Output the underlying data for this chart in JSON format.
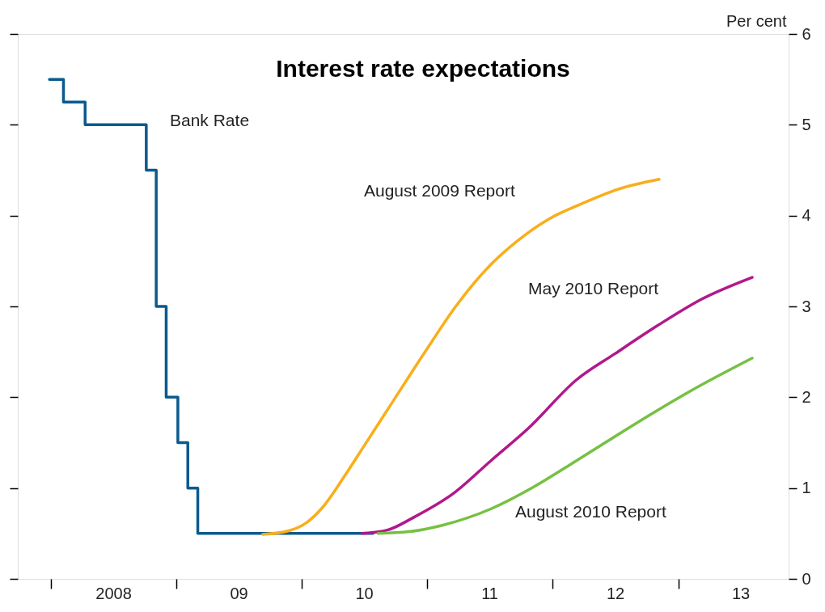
{
  "chart_data": {
    "type": "line",
    "title": "Interest rate expectations",
    "ylabel": "Per cent",
    "xlim": [
      "2007-09-27",
      "2013-11-18"
    ],
    "ylim": [
      0,
      6
    ],
    "xticks": [
      {
        "value": "2008",
        "label": null
      },
      {
        "value": "2008-07",
        "label": "2008"
      },
      {
        "value": "2009",
        "label": null
      },
      {
        "value": "2009-07",
        "label": "09"
      },
      {
        "value": "2010",
        "label": null
      },
      {
        "value": "2010-07",
        "label": "10"
      },
      {
        "value": "2011",
        "label": null
      },
      {
        "value": "2011-07",
        "label": "11"
      },
      {
        "value": "2012",
        "label": null
      },
      {
        "value": "2012-07",
        "label": "12"
      },
      {
        "value": "2013",
        "label": null
      },
      {
        "value": "2013-07",
        "label": "13"
      }
    ],
    "yticks": [
      0,
      1,
      2,
      3,
      4,
      5,
      6
    ],
    "grid": false,
    "line_style": "solid",
    "series": [
      {
        "name": "Bank Rate",
        "type": "step",
        "color": "#0a5a8f",
        "x": [
          "2007-12-28",
          "2008-02-07",
          "2008-04-10",
          "2008-10-05",
          "2008-11-03",
          "2008-12-02",
          "2009-01-05",
          "2009-02-03",
          "2009-03-04",
          "2010-07-27"
        ],
        "values": [
          5.5,
          5.25,
          5.0,
          4.5,
          3.0,
          2.0,
          1.5,
          1.0,
          0.5,
          0.5
        ]
      },
      {
        "name": "August 2009 Report",
        "color": "#f9ae1b",
        "x": [
          "2009-09-09",
          "2009-11-24",
          "2010-01-15",
          "2010-03-03",
          "2010-05-05",
          "2010-07-09",
          "2010-09-24",
          "2010-12-24",
          "2011-03-25",
          "2011-07-05",
          "2011-09-20",
          "2011-12-20",
          "2012-03-25",
          "2012-07-09",
          "2012-11-06"
        ],
        "values": [
          0.49,
          0.53,
          0.62,
          0.79,
          1.13,
          1.51,
          1.96,
          2.49,
          3.0,
          3.46,
          3.72,
          3.96,
          4.13,
          4.29,
          4.4
        ]
      },
      {
        "name": "May 2010 Report",
        "color": "#b0198c",
        "x": [
          "2010-06-25",
          "2010-09-09",
          "2010-11-24",
          "2011-03-18",
          "2011-07-05",
          "2011-10-23",
          "2012-03-10",
          "2012-07-01",
          "2012-11-02",
          "2013-03-10",
          "2013-08-04"
        ],
        "values": [
          0.5,
          0.54,
          0.68,
          0.94,
          1.3,
          1.66,
          2.19,
          2.48,
          2.79,
          3.08,
          3.32
        ]
      },
      {
        "name": "August 2010 Report",
        "color": "#76c043",
        "x": [
          "2010-08-11",
          "2010-11-10",
          "2011-02-14",
          "2011-07-05",
          "2011-11-06",
          "2012-03-10",
          "2012-09-16",
          "2013-02-06",
          "2013-08-04"
        ],
        "values": [
          0.5,
          0.52,
          0.59,
          0.77,
          1.01,
          1.3,
          1.75,
          2.07,
          2.43
        ]
      }
    ]
  }
}
